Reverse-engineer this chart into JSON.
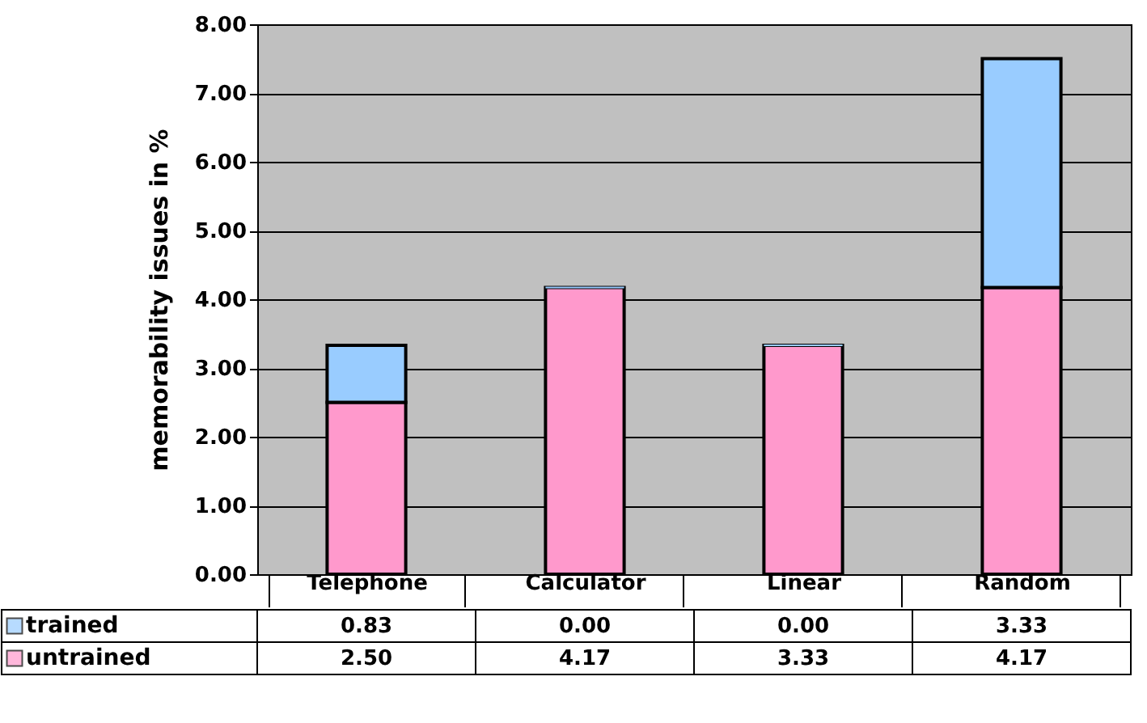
{
  "chart_data": {
    "type": "bar",
    "stacked": true,
    "ylabel": "memorability issues in %",
    "categories": [
      "Telephone",
      "Calculator",
      "Linear",
      "Random"
    ],
    "series": [
      {
        "name": "untrained",
        "color": "#ff99cc",
        "values": [
          2.5,
          4.17,
          3.33,
          4.17
        ],
        "value_labels": [
          "2.50",
          "4.17",
          "3.33",
          "4.17"
        ]
      },
      {
        "name": "trained",
        "color": "#99ccff",
        "values": [
          0.83,
          0.0,
          0.0,
          3.33
        ],
        "value_labels": [
          "0.83",
          "0.00",
          "0.00",
          "3.33"
        ]
      }
    ],
    "ylim": [
      0,
      8
    ],
    "yticks": [
      {
        "value": 0,
        "label": "0.00"
      },
      {
        "value": 1,
        "label": "1.00"
      },
      {
        "value": 2,
        "label": "2.00"
      },
      {
        "value": 3,
        "label": "3.00"
      },
      {
        "value": 4,
        "label": "4.00"
      },
      {
        "value": 5,
        "label": "5.00"
      },
      {
        "value": 6,
        "label": "6.00"
      },
      {
        "value": 7,
        "label": "7.00"
      },
      {
        "value": 8,
        "label": "8.00"
      }
    ],
    "grid": true,
    "legend": "bottom"
  }
}
